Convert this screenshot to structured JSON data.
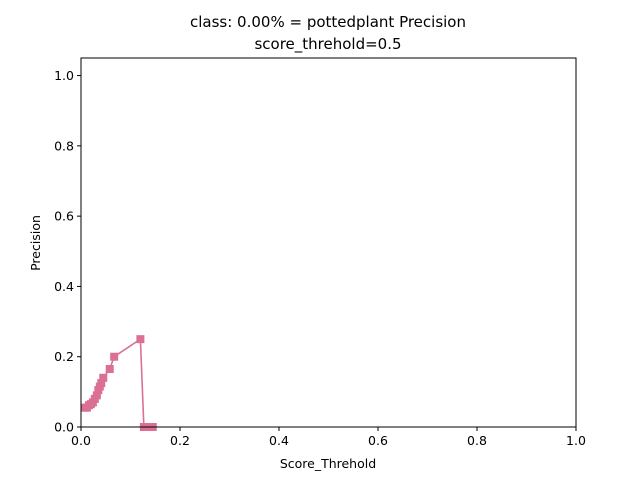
{
  "chart_data": {
    "type": "line",
    "title_line1": "class: 0.00% = pottedplant Precision",
    "title_line2": "score_threhold=0.5",
    "xlabel": "Score_Threhold",
    "ylabel": "Precision",
    "xlim": [
      0.0,
      1.0
    ],
    "ylim": [
      0.0,
      1.05
    ],
    "xticks": [
      0.0,
      0.2,
      0.4,
      0.6,
      0.8,
      1.0
    ],
    "xtick_labels": [
      "0.0",
      "0.2",
      "0.4",
      "0.6",
      "0.8",
      "1.0"
    ],
    "yticks": [
      0.0,
      0.2,
      0.4,
      0.6,
      0.8,
      1.0
    ],
    "ytick_labels": [
      "0.0",
      "0.2",
      "0.4",
      "0.6",
      "0.8",
      "1.0"
    ],
    "grid": false,
    "marker": "square",
    "series": [
      {
        "color": "#db7093",
        "x": [
          0.008,
          0.012,
          0.016,
          0.02,
          0.024,
          0.028,
          0.032,
          0.035,
          0.038,
          0.041,
          0.045,
          0.058,
          0.067,
          0.12,
          0.127,
          0.135,
          0.145
        ],
        "y": [
          0.055,
          0.055,
          0.062,
          0.065,
          0.07,
          0.08,
          0.09,
          0.105,
          0.115,
          0.125,
          0.14,
          0.165,
          0.2,
          0.25,
          0.0,
          0.0,
          0.0
        ]
      }
    ]
  }
}
